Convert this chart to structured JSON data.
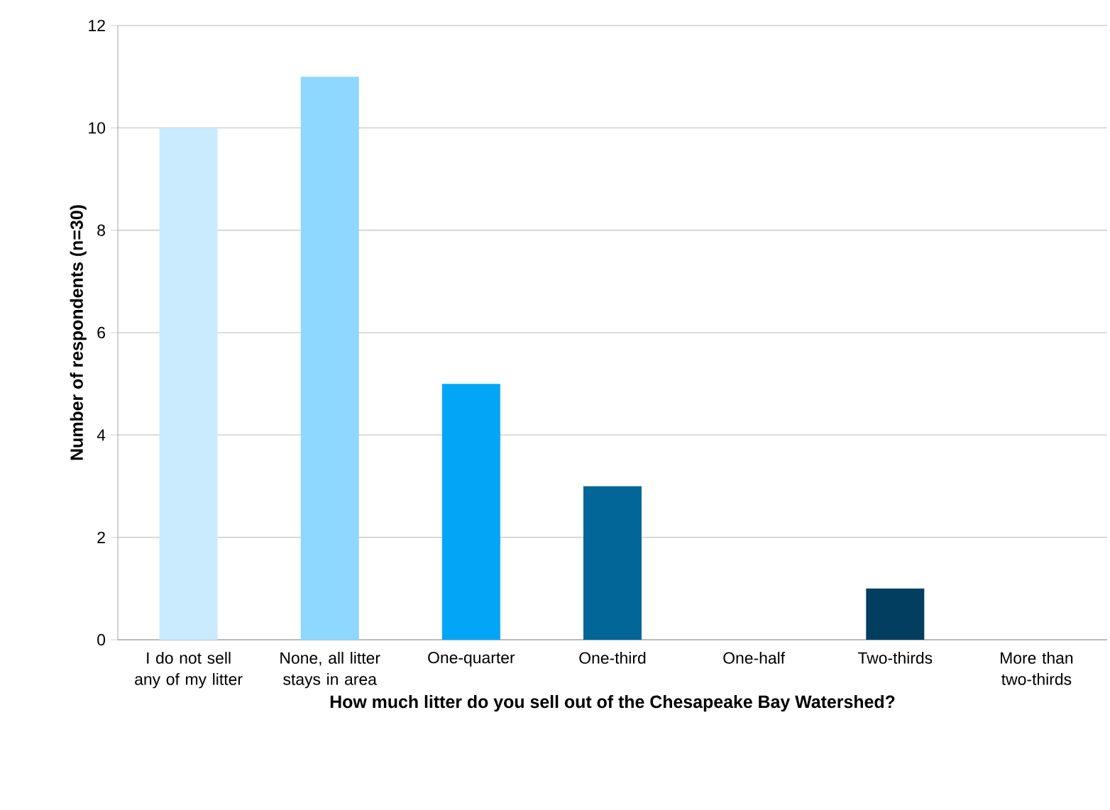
{
  "chart_data": {
    "type": "bar",
    "xlabel": "How much litter do you sell out of the Chesapeake Bay Watershed?",
    "ylabel": "Number of respondents (n=30)",
    "categories": [
      "I do not sell any of my litter",
      "None, all litter stays in area",
      "One-quarter",
      "One-third",
      "One-half",
      "Two-thirds",
      "More than two-thirds"
    ],
    "values": [
      10,
      11,
      5,
      3,
      0,
      1,
      0
    ],
    "colors": [
      "#c9ebfd",
      "#8dd8fc",
      "#03a6f6",
      "#026698",
      "#0a4f7a",
      "#023e5f",
      "#012a40"
    ],
    "ylim": [
      0,
      12
    ],
    "yticks": [
      0,
      2,
      4,
      6,
      8,
      10,
      12
    ],
    "grid": "y"
  }
}
